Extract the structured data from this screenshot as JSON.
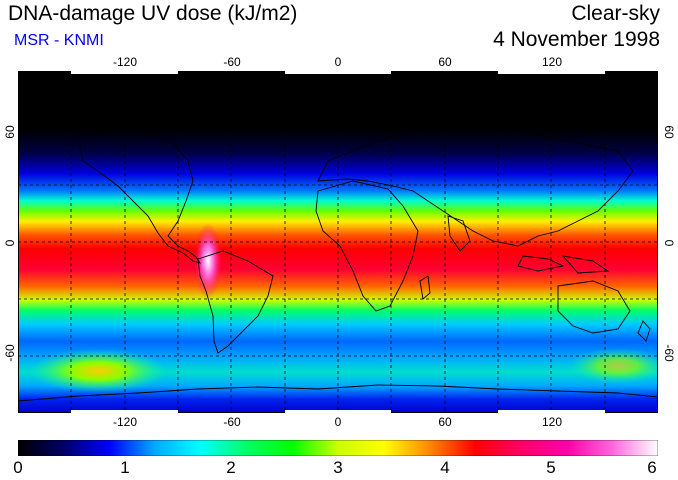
{
  "header": {
    "title": "DNA-damage UV dose (kJ/m2)",
    "source": "MSR - KNMI",
    "condition": "Clear-sky",
    "date": "4 November 1998"
  },
  "map": {
    "projection": "equirectangular",
    "lon_range": [
      -180,
      180
    ],
    "lat_range": [
      -90,
      90
    ],
    "lon_ticks": [
      "-120",
      "-60",
      "0",
      "60",
      "120"
    ],
    "lat_ticks": [
      "60",
      "0",
      "-60"
    ],
    "grid": "dashed every 30 degrees",
    "coastlines": "black outline",
    "pattern": "maximum dose band near 0–20 S, very low north of 45 N, secondary high near 50–60 S Pacific"
  },
  "colorbar": {
    "labels": [
      "0",
      "1",
      "2",
      "3",
      "4",
      "5",
      "6"
    ],
    "stops": [
      "#000000",
      "#000066",
      "#0000ff",
      "#00aaff",
      "#00ffff",
      "#00ff66",
      "#00ff00",
      "#ccff00",
      "#ffff00",
      "#ff8800",
      "#ff0000",
      "#ff0066",
      "#ff00aa",
      "#ff66dd",
      "#ffffff"
    ]
  }
}
